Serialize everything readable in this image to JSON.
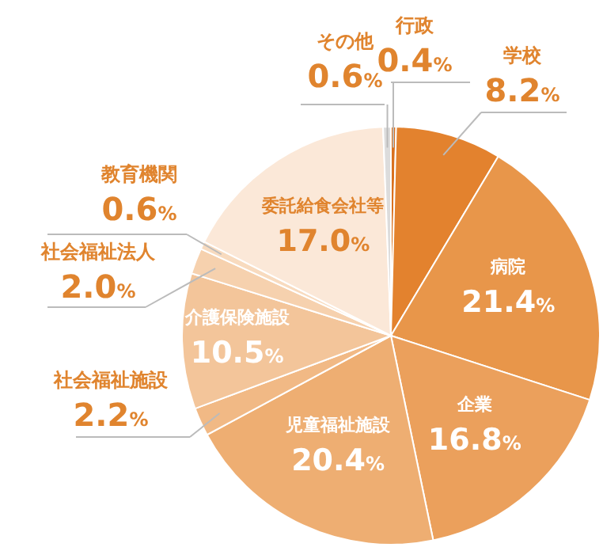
{
  "chart_data": {
    "type": "pie",
    "categories": [
      "行政",
      "学校",
      "病院",
      "企業",
      "児童福祉施設",
      "社会福祉施設",
      "介護保険施設",
      "社会福祉法人",
      "教育機関",
      "委託給食会社等",
      "その他"
    ],
    "values": [
      0.4,
      8.2,
      21.4,
      16.8,
      20.4,
      2.2,
      10.5,
      2.0,
      0.6,
      17.0,
      0.6
    ],
    "colors": [
      "#d9711f",
      "#e3822e",
      "#e8964a",
      "#eba05c",
      "#eeae72",
      "#f1b985",
      "#f3c59a",
      "#f6d1ae",
      "#f8dbbf",
      "#fbe8d8",
      "#dcdcdc"
    ],
    "value_labels": [
      "0.4%",
      "8.2%",
      "21.4%",
      "16.8%",
      "20.4%",
      "2.2%",
      "10.5%",
      "2.0%",
      "0.6%",
      "17.0%",
      "0.6%"
    ]
  }
}
